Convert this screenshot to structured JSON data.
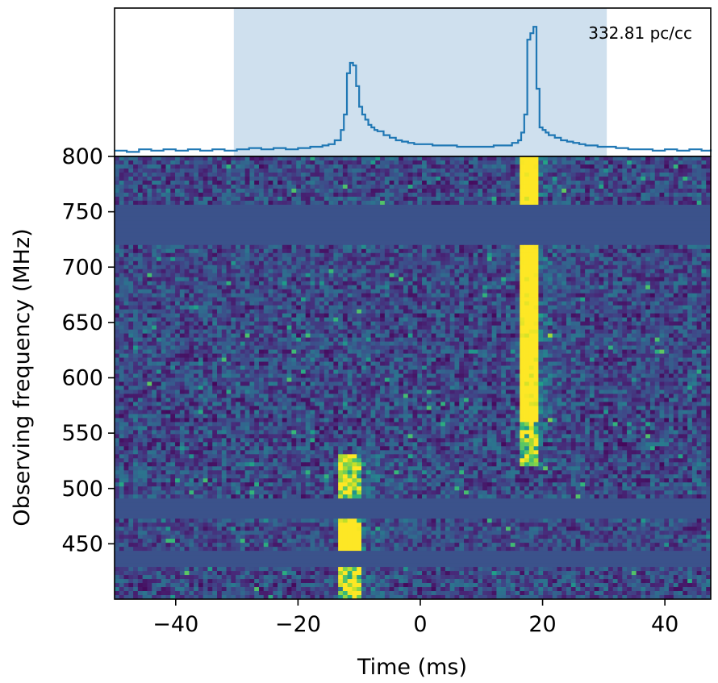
{
  "chart_data": [
    {
      "type": "line",
      "panel": "profile",
      "annotation": "332.81 pc/cc",
      "x_unit": "ms",
      "xlim": [
        -50,
        47.5
      ],
      "highlight_span": [
        -30.5,
        30.5
      ],
      "colors": {
        "line": "#1f77b4",
        "span": "#cfe0ee"
      },
      "x": [
        -50,
        -48,
        -46,
        -44,
        -42,
        -40,
        -38,
        -36,
        -34,
        -32,
        -30,
        -28,
        -26,
        -24,
        -22,
        -20,
        -18,
        -16,
        -15,
        -14,
        -13,
        -12.5,
        -12,
        -11.5,
        -11,
        -10.5,
        -10,
        -9.5,
        -9,
        -8.5,
        -8,
        -7.5,
        -7,
        -6,
        -5,
        -4,
        -3,
        -2,
        -1,
        0,
        2,
        4,
        6,
        8,
        10,
        12,
        14,
        15,
        16,
        16.5,
        17,
        17.5,
        18,
        18.5,
        19,
        19.5,
        20,
        20.5,
        21,
        22,
        23,
        24,
        25,
        26,
        27,
        28,
        29,
        30,
        32,
        34,
        36,
        38,
        40,
        42,
        44,
        46,
        47.5
      ],
      "y": [
        0.02,
        0.01,
        0.03,
        0.02,
        0.03,
        0.02,
        0.03,
        0.02,
        0.03,
        0.02,
        0.03,
        0.04,
        0.03,
        0.04,
        0.03,
        0.04,
        0.05,
        0.06,
        0.07,
        0.1,
        0.18,
        0.3,
        0.62,
        0.7,
        0.68,
        0.52,
        0.36,
        0.3,
        0.26,
        0.22,
        0.2,
        0.18,
        0.17,
        0.14,
        0.12,
        0.1,
        0.09,
        0.08,
        0.07,
        0.07,
        0.06,
        0.06,
        0.05,
        0.05,
        0.05,
        0.06,
        0.06,
        0.08,
        0.1,
        0.16,
        0.3,
        0.88,
        0.93,
        0.98,
        0.5,
        0.2,
        0.18,
        0.16,
        0.14,
        0.12,
        0.1,
        0.09,
        0.08,
        0.07,
        0.06,
        0.06,
        0.05,
        0.05,
        0.04,
        0.03,
        0.03,
        0.02,
        0.03,
        0.02,
        0.03,
        0.02,
        0.03
      ]
    },
    {
      "type": "heatmap",
      "panel": "dynamic_spectrum",
      "xlabel": "Time (ms)",
      "ylabel": "Observing frequency (MHz)",
      "xlim": [
        -50,
        47.5
      ],
      "ylim": [
        400,
        800
      ],
      "x_ticks": [
        -40,
        -20,
        0,
        20,
        40
      ],
      "x_tick_labels": [
        "−40",
        "−20",
        "0",
        "20",
        "40"
      ],
      "y_ticks": [
        450,
        500,
        550,
        600,
        650,
        700,
        750,
        800
      ],
      "y_tick_labels": [
        "450",
        "500",
        "550",
        "600",
        "650",
        "700",
        "750",
        "800"
      ],
      "colormap": "viridis",
      "colormap_stops": [
        "#440154",
        "#482878",
        "#3e4a89",
        "#31688e",
        "#26828e",
        "#1f9e89",
        "#35b779",
        "#6ece58",
        "#b5de2b",
        "#fde725"
      ],
      "masked_bands_mhz": [
        [
          721,
          758
        ],
        [
          474,
          490
        ],
        [
          430,
          445
        ]
      ],
      "bursts": [
        {
          "time_ms": -11.5,
          "freq_range_mhz": [
            400,
            530
          ],
          "brightest_mhz": [
            440,
            470
          ]
        },
        {
          "time_ms": 17.5,
          "freq_range_mhz": [
            520,
            800
          ],
          "brightest_mhz": [
            560,
            800
          ]
        }
      ]
    }
  ]
}
